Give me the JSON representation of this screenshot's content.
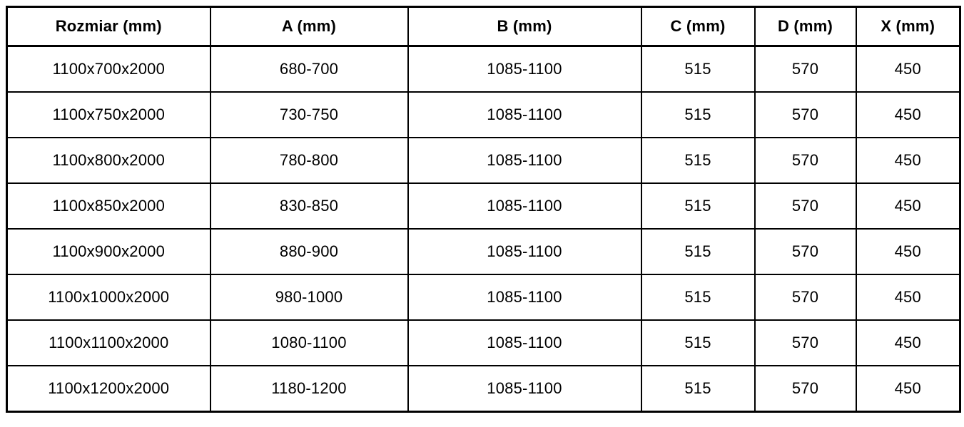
{
  "page": {
    "background": "#ffffff"
  },
  "table": {
    "title": "size-specification-table",
    "colors": {
      "border": "#000000",
      "text": "#000000",
      "background": "#ffffff"
    },
    "headers": [
      "Rozmiar (mm)",
      "A (mm)",
      "B (mm)",
      "C (mm)",
      "D (mm)",
      "X (mm)"
    ],
    "rows": [
      [
        "1100x700x2000",
        "680-700",
        "1085-1100",
        "515",
        "570",
        "450"
      ],
      [
        "1100x750x2000",
        "730-750",
        "1085-1100",
        "515",
        "570",
        "450"
      ],
      [
        "1100x800x2000",
        "780-800",
        "1085-1100",
        "515",
        "570",
        "450"
      ],
      [
        "1100x850x2000",
        "830-850",
        "1085-1100",
        "515",
        "570",
        "450"
      ],
      [
        "1100x900x2000",
        "880-900",
        "1085-1100",
        "515",
        "570",
        "450"
      ],
      [
        "1100x1000x2000",
        "980-1000",
        "1085-1100",
        "515",
        "570",
        "450"
      ],
      [
        "1100x1100x2000",
        "1080-1100",
        "1085-1100",
        "515",
        "570",
        "450"
      ],
      [
        "1100x1200x2000",
        "1180-1200",
        "1085-1100",
        "515",
        "570",
        "450"
      ]
    ]
  }
}
